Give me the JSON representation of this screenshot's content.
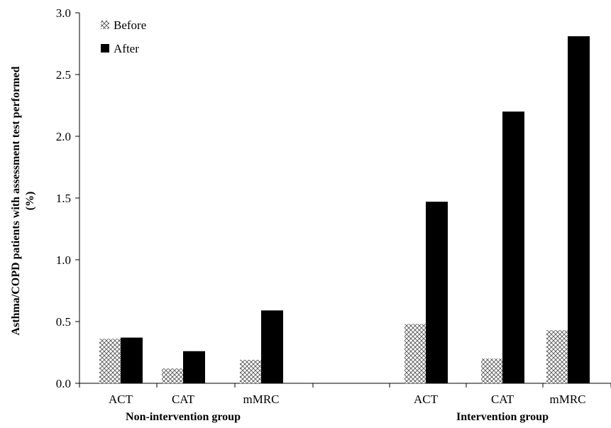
{
  "chart_data": {
    "type": "bar",
    "ylabel_line1": "Asthma/COPD patients with assessment test performed",
    "ylabel_line2": "(%)",
    "ylim": [
      0,
      3.0
    ],
    "yticks": [
      "0.0",
      "0.5",
      "1.0",
      "1.5",
      "2.0",
      "2.5",
      "3.0"
    ],
    "ytick_values": [
      0,
      0.5,
      1.0,
      1.5,
      2.0,
      2.5,
      3.0
    ],
    "groups": [
      {
        "name": "Non-intervention group",
        "categories": [
          "ACT",
          "CAT",
          "mMRC"
        ]
      },
      {
        "name": "Intervention group",
        "categories": [
          "ACT",
          "CAT",
          "mMRC"
        ]
      }
    ],
    "series": [
      {
        "name": "Before",
        "pattern": "hatch",
        "values": [
          0.36,
          0.12,
          0.19,
          0.48,
          0.2,
          0.43
        ]
      },
      {
        "name": "After",
        "color": "#000000",
        "values": [
          0.37,
          0.26,
          0.59,
          1.47,
          2.2,
          2.81
        ]
      }
    ],
    "legend_position": "top-left",
    "grid": false
  }
}
